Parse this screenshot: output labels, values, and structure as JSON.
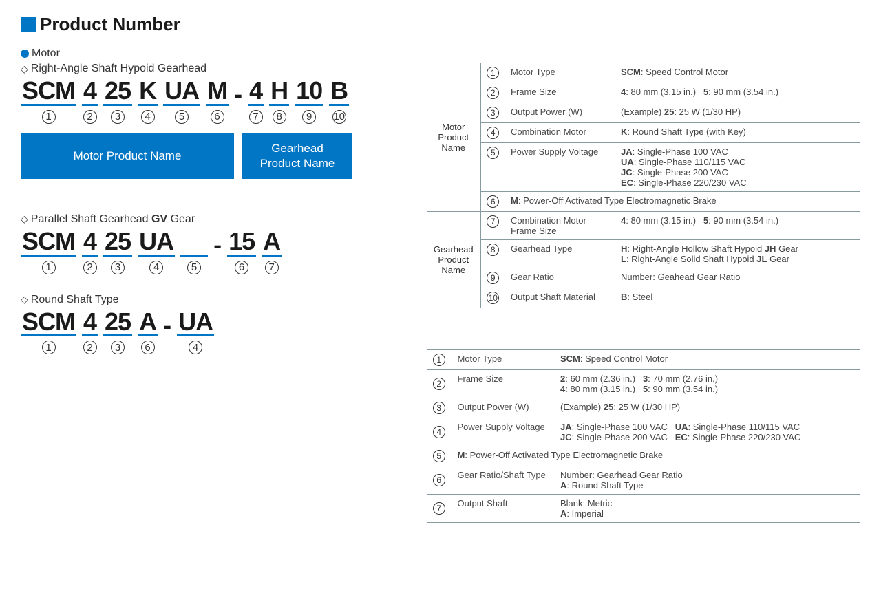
{
  "colors": {
    "accent": "#0076c4",
    "text": "#333333",
    "rule": "#8899a0"
  },
  "header": {
    "title": "Product Number",
    "motor_label": "Motor"
  },
  "section1": {
    "subtitle": "Right-Angle Shaft Hypoid Gearhead",
    "code": {
      "segs": [
        "SCM",
        "4",
        "25",
        "K",
        "UA",
        "M",
        "4",
        "H",
        "10",
        "B"
      ],
      "nums": [
        "①",
        "②",
        "③",
        "④",
        "⑤",
        "⑥",
        "⑦",
        "⑧",
        "⑨",
        "⑩"
      ]
    },
    "block_motor": "Motor Product Name",
    "block_gear": "Gearhead Product Name",
    "legend": {
      "group_motor": "Motor Product Name",
      "group_gear": "Gearhead Product Name",
      "rows": [
        {
          "n": "①",
          "label": "Motor Type",
          "desc": "<b>SCM</b>: Speed Control Motor"
        },
        {
          "n": "②",
          "label": "Frame Size",
          "desc": "<b>4</b>: 80 mm (3.15 in.)&nbsp;&nbsp;&nbsp;<b>5</b>: 90 mm (3.54 in.)"
        },
        {
          "n": "③",
          "label": "Output Power (W)",
          "desc": "(Example) <b>25</b>: 25 W (1/30 HP)"
        },
        {
          "n": "④",
          "label": "Combination Motor",
          "desc": "<b>K</b>: Round Shaft Type (with Key)"
        },
        {
          "n": "⑤",
          "label": "Power Supply Voltage",
          "desc": "<b>JA</b>: Single-Phase 100 VAC<br><b>UA</b>: Single-Phase 110/115 VAC<br><b>JC</b>: Single-Phase 200 VAC<br><b>EC</b>: Single-Phase 220/230 VAC"
        },
        {
          "n": "⑥",
          "label": "",
          "desc": "<b>M</b>: Power-Off Activated Type Electromagnetic Brake",
          "span": true
        },
        {
          "n": "⑦",
          "label": "Combination Motor Frame Size",
          "desc": "<b>4</b>: 80 mm (3.15 in.)&nbsp;&nbsp;&nbsp;<b>5</b>: 90 mm (3.54 in.)"
        },
        {
          "n": "⑧",
          "label": "Gearhead Type",
          "desc": "<b>H</b>: Right-Angle Hollow Shaft Hypoid <b>JH</b> Gear<br><b>L</b>: Right-Angle Solid Shaft Hypoid <b>JL</b> Gear"
        },
        {
          "n": "⑨",
          "label": "Gear Ratio",
          "desc": "Number: Geahead Gear Ratio"
        },
        {
          "n": "⑩",
          "label": "Output Shaft Material",
          "desc": "<b>B</b>: Steel"
        }
      ]
    }
  },
  "section2": {
    "subtitle_prefix": "Parallel Shaft Gearhead ",
    "subtitle_bold": "GV",
    "subtitle_suffix": " Gear",
    "code": {
      "segs": [
        "SCM",
        "4",
        "25",
        "UA",
        "",
        "15",
        "A"
      ],
      "nums": [
        "①",
        "②",
        "③",
        "④",
        "⑤",
        "⑥",
        "⑦"
      ]
    }
  },
  "section3": {
    "subtitle": "Round Shaft Type",
    "code": {
      "segs": [
        "SCM",
        "4",
        "25",
        "A",
        "UA"
      ],
      "nums": [
        "①",
        "②",
        "③",
        "⑥",
        "④"
      ]
    }
  },
  "legend2": {
    "rows": [
      {
        "n": "①",
        "label": "Motor Type",
        "desc": "<b>SCM</b>: Speed Control Motor"
      },
      {
        "n": "②",
        "label": "Frame Size",
        "desc": "<b>2</b>: 60 mm (2.36 in.)&nbsp;&nbsp;&nbsp;<b>3</b>: 70 mm (2.76 in.)<br><b>4</b>: 80 mm (3.15 in.)&nbsp;&nbsp;&nbsp;<b>5</b>: 90 mm (3.54 in.)"
      },
      {
        "n": "③",
        "label": "Output Power (W)",
        "desc": "(Example) <b>25</b>: 25 W (1/30 HP)"
      },
      {
        "n": "④",
        "label": "Power Supply Voltage",
        "desc": "<b>JA</b>: Single-Phase 100 VAC&nbsp;&nbsp;&nbsp;<b>UA</b>: Single-Phase 110/115 VAC<br><b>JC</b>: Single-Phase 200 VAC&nbsp;&nbsp;&nbsp;<b>EC</b>: Single-Phase 220/230 VAC"
      },
      {
        "n": "⑤",
        "label": "",
        "desc": "<b>M</b>: Power-Off Activated Type Electromagnetic Brake",
        "span": true
      },
      {
        "n": "⑥",
        "label": "Gear Ratio/Shaft Type",
        "desc": "Number: Gearhead Gear Ratio<br><b>A</b>: Round Shaft Type"
      },
      {
        "n": "⑦",
        "label": "Output Shaft",
        "desc": "Blank: Metric<br><b>A</b>: Imperial"
      }
    ]
  }
}
